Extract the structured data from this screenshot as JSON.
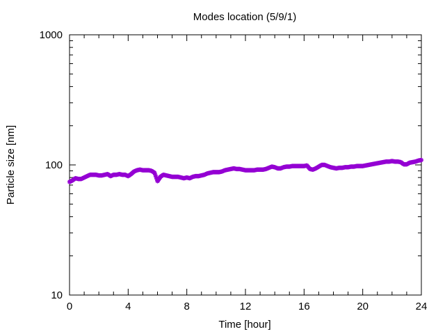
{
  "chart_data": {
    "type": "scatter",
    "title": "Modes location (5/9/1)",
    "xlabel": "Time [hour]",
    "ylabel": "Particle size [nm]",
    "xlim": [
      0,
      24
    ],
    "ylim": [
      10,
      1000
    ],
    "yscale": "log",
    "xticks": [
      0,
      4,
      8,
      12,
      16,
      20,
      24
    ],
    "yticks": [
      10,
      100,
      1000
    ],
    "xtick_labels": [
      "0",
      "4",
      "8",
      "12",
      "16",
      "20",
      "24"
    ],
    "ytick_labels": [
      "10",
      "100",
      "1000"
    ],
    "grid": false,
    "legend": "none",
    "marker_color": "#9400d3",
    "series": [
      {
        "x": [
          0,
          0.2,
          0.4,
          0.6,
          0.8,
          1.0,
          1.2,
          1.4,
          1.6,
          1.8,
          2.0,
          2.2,
          2.4,
          2.6,
          2.8,
          3.0,
          3.2,
          3.4,
          3.6,
          3.8,
          4.0,
          4.2,
          4.4,
          4.6,
          4.8,
          5.0,
          5.2,
          5.4,
          5.6,
          5.8,
          6.0,
          6.1,
          6.2,
          6.4,
          6.6,
          6.8,
          7.0,
          7.2,
          7.4,
          7.6,
          7.8,
          8.0,
          8.2,
          8.4,
          8.6,
          8.8,
          9.0,
          9.2,
          9.4,
          9.6,
          9.8,
          10.0,
          10.2,
          10.4,
          10.6,
          10.8,
          11.0,
          11.2,
          11.4,
          11.6,
          11.8,
          12.0,
          12.2,
          12.4,
          12.6,
          12.8,
          13.0,
          13.2,
          13.4,
          13.6,
          13.8,
          14.0,
          14.2,
          14.4,
          14.6,
          14.8,
          15.0,
          15.2,
          15.4,
          15.6,
          15.8,
          16.0,
          16.2,
          16.4,
          16.6,
          16.8,
          17.0,
          17.2,
          17.4,
          17.6,
          17.8,
          18.0,
          18.2,
          18.4,
          18.6,
          18.8,
          19.0,
          19.2,
          19.4,
          19.6,
          19.8,
          20.0,
          20.2,
          20.4,
          20.6,
          20.8,
          21.0,
          21.2,
          21.4,
          21.6,
          21.8,
          22.0,
          22.2,
          22.4,
          22.6,
          22.8,
          23.0,
          23.2,
          23.4,
          23.6,
          23.8,
          24.0
        ],
        "values": [
          74,
          76,
          79,
          78,
          78,
          80,
          82,
          84,
          84,
          84,
          83,
          83,
          84,
          85,
          82,
          84,
          84,
          85,
          84,
          84,
          82,
          85,
          89,
          91,
          92,
          91,
          91,
          91,
          90,
          87,
          75,
          78,
          81,
          84,
          83,
          82,
          81,
          81,
          81,
          80,
          79,
          80,
          79,
          81,
          82,
          82,
          83,
          84,
          86,
          87,
          88,
          88,
          88,
          89,
          91,
          92,
          93,
          94,
          93,
          93,
          92,
          91,
          91,
          91,
          91,
          92,
          92,
          92,
          93,
          95,
          97,
          96,
          94,
          94,
          96,
          97,
          97,
          98,
          98,
          98,
          98,
          98,
          99,
          93,
          92,
          94,
          97,
          100,
          100,
          98,
          96,
          95,
          94,
          95,
          95,
          96,
          96,
          97,
          97,
          98,
          98,
          98,
          99,
          100,
          101,
          102,
          103,
          104,
          105,
          106,
          106,
          107,
          106,
          106,
          105,
          101,
          101,
          104,
          105,
          106,
          108,
          109
        ]
      }
    ]
  }
}
